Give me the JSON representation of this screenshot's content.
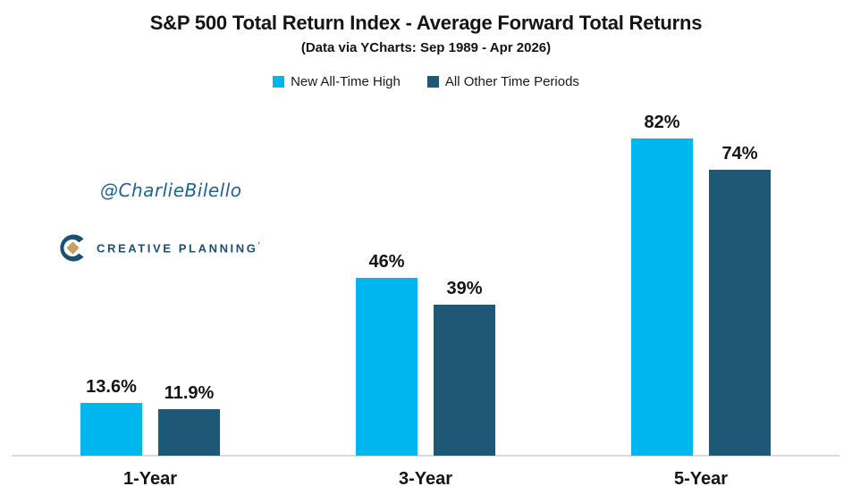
{
  "title": "S&P 500 Total Return Index - Average Forward Total Returns",
  "subtitle": "(Data via YCharts: Sep 1989 - Apr 2026)",
  "watermark": "@CharlieBilello",
  "logo": {
    "brand": "CREATIVE PLANNING",
    "trademark": "’"
  },
  "colors": {
    "series_new_high": "#00b6ee",
    "series_other": "#1d5876",
    "axis_line": "#d9d9d9",
    "logo_navy": "#1d4f72",
    "logo_gold": "#c0a15e",
    "watermark_blue": "#21658b",
    "text": "#141414"
  },
  "chart_data": {
    "type": "bar",
    "title": "S&P 500 Total Return Index - Average Forward Total Returns",
    "subtitle": "(Data via YCharts: Sep 1989 - Apr 2026)",
    "categories": [
      "1-Year",
      "3-Year",
      "5-Year"
    ],
    "series": [
      {
        "name": "New All-Time High",
        "color": "#00b6ee",
        "values": [
          13.6,
          46,
          82
        ],
        "labels": [
          "13.6%",
          "46%",
          "82%"
        ]
      },
      {
        "name": "All Other Time Periods",
        "color": "#1d5876",
        "values": [
          11.9,
          39,
          74
        ],
        "labels": [
          "11.9%",
          "39%",
          "74%"
        ]
      }
    ],
    "unit": "%",
    "ylim": [
      0,
      95
    ],
    "grid": false,
    "y_axis_visible": false,
    "x_axis_visible": true,
    "legend_position": "top-center",
    "data_labels": true
  }
}
